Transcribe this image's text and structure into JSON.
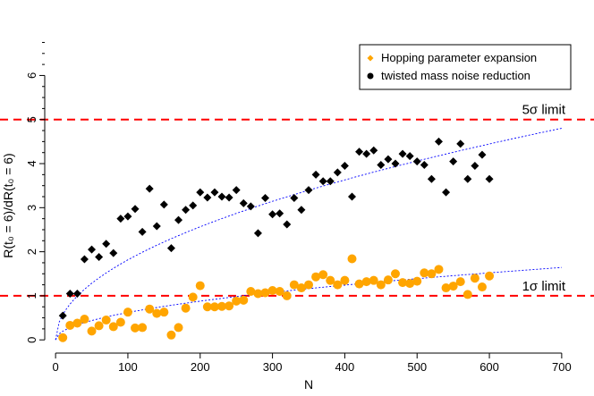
{
  "chart_data": {
    "type": "scatter",
    "xlabel": "N",
    "ylabel": "R(t₀ = 6)/dR(t₀ = 6)",
    "xlim": [
      -15,
      715
    ],
    "ylim": [
      -0.3,
      6.8
    ],
    "xticks": [
      0,
      100,
      200,
      300,
      400,
      500,
      600,
      700
    ],
    "yticks": [
      0,
      1,
      2,
      3,
      4,
      5,
      6
    ],
    "minor_yticks": [
      0.25,
      0.5,
      0.75,
      1.25,
      1.5,
      1.75,
      2.25,
      2.5,
      2.75,
      3.25,
      3.5,
      3.75,
      4.25,
      4.5,
      4.75,
      5.25,
      5.5,
      5.75,
      6.25,
      6.5,
      6.75
    ],
    "grid": false,
    "legend_position": "top-right",
    "reference_lines": [
      {
        "y": 5,
        "label": "5σ limit",
        "color": "#ff0000"
      },
      {
        "y": 1,
        "label": "1σ limit",
        "color": "#ff0000"
      }
    ],
    "fits": [
      {
        "form": "a*sqrt(N)",
        "a": 0.1815,
        "x_range": [
          0,
          700
        ],
        "color": "#0000ff"
      },
      {
        "form": "a*sqrt(N)",
        "a": 0.0621,
        "x_range": [
          0,
          700
        ],
        "color": "#0000ff"
      }
    ],
    "series": [
      {
        "name": "Hopping parameter expansion",
        "marker": "diamond",
        "color": "#ffa500",
        "x": [
          10,
          20,
          30,
          40,
          50,
          60,
          70,
          80,
          90,
          100,
          110,
          120,
          130,
          140,
          150,
          160,
          170,
          180,
          190,
          200,
          210,
          220,
          230,
          240,
          250,
          260,
          270,
          280,
          290,
          300,
          310,
          320,
          330,
          340,
          350,
          360,
          370,
          380,
          390,
          400,
          410,
          420,
          430,
          440,
          450,
          460,
          470,
          480,
          490,
          500,
          510,
          520,
          530,
          540,
          550,
          560,
          570,
          580,
          590,
          600
        ],
        "y": [
          0.05,
          0.33,
          0.38,
          0.47,
          0.2,
          0.32,
          0.45,
          0.3,
          0.4,
          0.63,
          0.27,
          0.28,
          0.7,
          0.6,
          0.63,
          0.11,
          0.28,
          0.72,
          0.97,
          1.23,
          0.75,
          0.75,
          0.76,
          0.77,
          0.88,
          0.9,
          1.1,
          1.05,
          1.07,
          1.12,
          1.1,
          1.0,
          1.25,
          1.18,
          1.25,
          1.43,
          1.48,
          1.35,
          1.25,
          1.35,
          1.84,
          1.27,
          1.32,
          1.35,
          1.25,
          1.36,
          1.5,
          1.3,
          1.28,
          1.33,
          1.52,
          1.5,
          1.6,
          1.18,
          1.22,
          1.32,
          1.03,
          1.4,
          1.2,
          1.45
        ]
      },
      {
        "name": "twisted mass noise reduction",
        "marker": "circle",
        "color": "#000000",
        "x": [
          10,
          20,
          30,
          40,
          50,
          60,
          70,
          80,
          90,
          100,
          110,
          120,
          130,
          140,
          150,
          160,
          170,
          180,
          190,
          200,
          210,
          220,
          230,
          240,
          250,
          260,
          270,
          280,
          290,
          300,
          310,
          320,
          330,
          340,
          350,
          360,
          370,
          380,
          390,
          400,
          410,
          420,
          430,
          440,
          450,
          460,
          470,
          480,
          490,
          500,
          510,
          520,
          530,
          540,
          550,
          560,
          570,
          580,
          590,
          600
        ],
        "y": [
          0.55,
          1.05,
          1.05,
          1.83,
          2.05,
          1.88,
          2.18,
          1.97,
          2.75,
          2.8,
          2.97,
          2.45,
          3.43,
          2.58,
          3.07,
          2.08,
          2.72,
          2.95,
          3.05,
          3.35,
          3.23,
          3.35,
          3.25,
          3.23,
          3.4,
          3.1,
          3.03,
          2.42,
          3.22,
          2.85,
          2.87,
          2.62,
          3.22,
          2.95,
          3.4,
          3.75,
          3.6,
          3.6,
          3.8,
          3.95,
          3.25,
          4.27,
          4.22,
          4.3,
          3.97,
          4.1,
          4.0,
          4.22,
          4.17,
          4.05,
          3.97,
          3.65,
          4.5,
          3.35,
          4.05,
          4.45,
          3.65,
          3.95,
          4.2,
          3.65
        ]
      }
    ]
  }
}
